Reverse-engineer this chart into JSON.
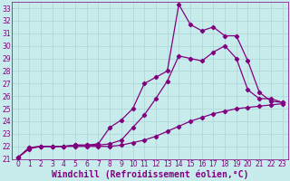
{
  "title": "",
  "xlabel": "Windchill (Refroidissement éolien,°C)",
  "ylabel": "",
  "bg_color": "#c8ecec",
  "line_color": "#800080",
  "grid_color": "#b0d8d8",
  "xlim": [
    -0.5,
    23.5
  ],
  "ylim": [
    21,
    33.5
  ],
  "xticks": [
    0,
    1,
    2,
    3,
    4,
    5,
    6,
    7,
    8,
    9,
    10,
    11,
    12,
    13,
    14,
    15,
    16,
    17,
    18,
    19,
    20,
    21,
    22,
    23
  ],
  "yticks": [
    21,
    22,
    23,
    24,
    25,
    26,
    27,
    28,
    29,
    30,
    31,
    32,
    33
  ],
  "line1_x": [
    0,
    1,
    2,
    3,
    4,
    5,
    6,
    7,
    8,
    9,
    10,
    11,
    12,
    13,
    14,
    15,
    16,
    17,
    18,
    19,
    20,
    21,
    22,
    23
  ],
  "line1_y": [
    21.1,
    21.8,
    22.0,
    22.0,
    22.0,
    22.0,
    22.0,
    22.0,
    22.0,
    22.1,
    22.3,
    22.5,
    22.8,
    23.2,
    23.6,
    24.0,
    24.3,
    24.6,
    24.8,
    25.0,
    25.1,
    25.2,
    25.3,
    25.4
  ],
  "line2_x": [
    0,
    1,
    2,
    3,
    4,
    5,
    6,
    7,
    8,
    9,
    10,
    11,
    12,
    13,
    14,
    15,
    16,
    17,
    18,
    19,
    20,
    21,
    22,
    23
  ],
  "line2_y": [
    21.1,
    21.9,
    22.0,
    22.0,
    22.0,
    22.1,
    22.1,
    22.1,
    22.2,
    22.5,
    23.5,
    24.5,
    25.8,
    27.2,
    29.2,
    29.0,
    28.8,
    29.5,
    30.0,
    29.0,
    26.5,
    25.8,
    25.8,
    25.5
  ],
  "line3_x": [
    0,
    1,
    2,
    3,
    4,
    5,
    6,
    7,
    8,
    9,
    10,
    11,
    12,
    13,
    14,
    15,
    16,
    17,
    18,
    19,
    20,
    21,
    22,
    23
  ],
  "line3_y": [
    21.1,
    21.9,
    22.0,
    22.0,
    22.0,
    22.1,
    22.1,
    22.2,
    23.5,
    24.1,
    25.0,
    27.0,
    27.5,
    28.0,
    33.3,
    31.7,
    31.2,
    31.5,
    30.8,
    30.8,
    28.8,
    26.3,
    25.6,
    25.5
  ],
  "marker": "D",
  "markersize": 2.2,
  "linewidth": 0.9,
  "xlabel_fontsize": 7,
  "tick_fontsize": 5.5
}
